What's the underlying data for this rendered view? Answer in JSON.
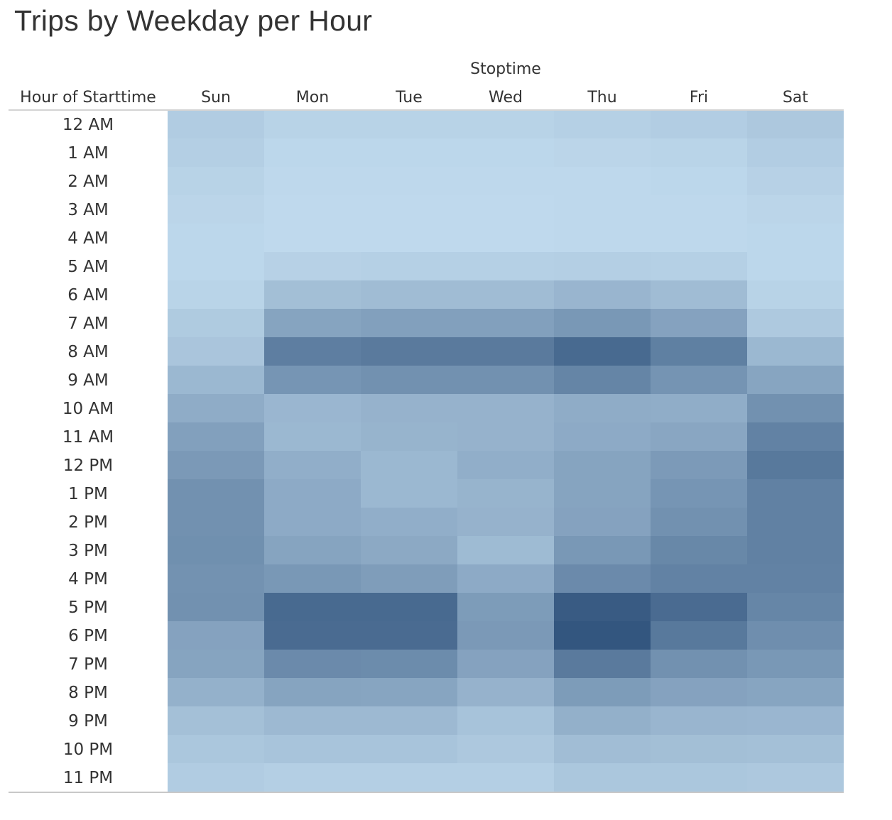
{
  "chart_data": {
    "type": "heatmap",
    "title": "Trips by Weekday per Hour",
    "column_group_label": "Stoptime",
    "row_header": "Hour of Starttime",
    "columns": [
      "Sun",
      "Mon",
      "Tue",
      "Wed",
      "Thu",
      "Fri",
      "Sat"
    ],
    "rows": [
      "12 AM",
      "1 AM",
      "2 AM",
      "3 AM",
      "4 AM",
      "5 AM",
      "6 AM",
      "7 AM",
      "8 AM",
      "9 AM",
      "10 AM",
      "11 AM",
      "12 PM",
      "1 PM",
      "2 PM",
      "3 PM",
      "4 PM",
      "5 PM",
      "6 PM",
      "7 PM",
      "8 PM",
      "9 PM",
      "10 PM",
      "11 PM"
    ],
    "values": [
      [
        0.12,
        0.07,
        0.07,
        0.07,
        0.09,
        0.11,
        0.15
      ],
      [
        0.1,
        0.04,
        0.04,
        0.04,
        0.05,
        0.06,
        0.11
      ],
      [
        0.07,
        0.03,
        0.03,
        0.03,
        0.03,
        0.04,
        0.08
      ],
      [
        0.05,
        0.02,
        0.02,
        0.02,
        0.03,
        0.03,
        0.05
      ],
      [
        0.04,
        0.02,
        0.02,
        0.02,
        0.03,
        0.03,
        0.04
      ],
      [
        0.04,
        0.08,
        0.09,
        0.09,
        0.1,
        0.09,
        0.04
      ],
      [
        0.06,
        0.22,
        0.24,
        0.24,
        0.29,
        0.24,
        0.07
      ],
      [
        0.13,
        0.42,
        0.45,
        0.45,
        0.51,
        0.43,
        0.14
      ],
      [
        0.17,
        0.7,
        0.73,
        0.73,
        0.85,
        0.69,
        0.27
      ],
      [
        0.27,
        0.53,
        0.56,
        0.56,
        0.65,
        0.54,
        0.41
      ],
      [
        0.36,
        0.28,
        0.31,
        0.31,
        0.36,
        0.35,
        0.56
      ],
      [
        0.45,
        0.27,
        0.3,
        0.31,
        0.37,
        0.4,
        0.67
      ],
      [
        0.5,
        0.34,
        0.27,
        0.34,
        0.42,
        0.49,
        0.74
      ],
      [
        0.56,
        0.37,
        0.27,
        0.3,
        0.42,
        0.53,
        0.68
      ],
      [
        0.56,
        0.37,
        0.34,
        0.31,
        0.43,
        0.56,
        0.68
      ],
      [
        0.57,
        0.42,
        0.38,
        0.25,
        0.51,
        0.63,
        0.68
      ],
      [
        0.55,
        0.51,
        0.47,
        0.37,
        0.61,
        0.67,
        0.67
      ],
      [
        0.56,
        0.85,
        0.85,
        0.48,
        0.96,
        0.84,
        0.64
      ],
      [
        0.43,
        0.84,
        0.84,
        0.5,
        1.0,
        0.74,
        0.58
      ],
      [
        0.42,
        0.61,
        0.6,
        0.43,
        0.73,
        0.56,
        0.51
      ],
      [
        0.32,
        0.42,
        0.41,
        0.31,
        0.48,
        0.43,
        0.41
      ],
      [
        0.21,
        0.26,
        0.26,
        0.19,
        0.33,
        0.29,
        0.28
      ],
      [
        0.16,
        0.18,
        0.18,
        0.15,
        0.23,
        0.22,
        0.21
      ],
      [
        0.12,
        0.1,
        0.1,
        0.1,
        0.16,
        0.16,
        0.15
      ]
    ],
    "value_scale": "relative intensity 0-1 (light to dark blue)",
    "color_low": "#c2dcef",
    "color_high": "#33567f",
    "legend": "none"
  }
}
